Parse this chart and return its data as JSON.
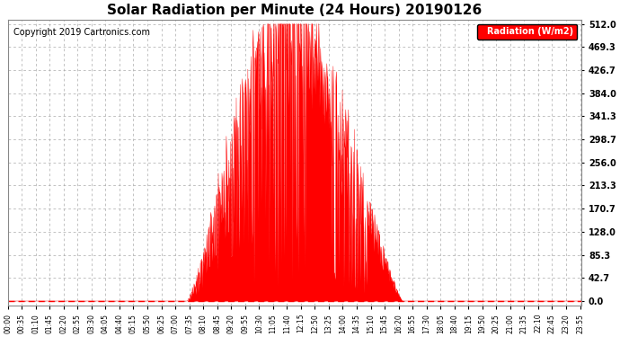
{
  "title": "Solar Radiation per Minute (24 Hours) 20190126",
  "copyright_text": "Copyright 2019 Cartronics.com",
  "legend_label": "Radiation (W/m2)",
  "y_ticks": [
    0.0,
    42.7,
    85.3,
    128.0,
    170.7,
    213.3,
    256.0,
    298.7,
    341.3,
    384.0,
    426.7,
    469.3,
    512.0
  ],
  "y_max": 512.0,
  "y_min": 0.0,
  "fill_color": "#FF0000",
  "line_color": "#FF0000",
  "background_color": "#FFFFFF",
  "grid_color": "#AAAAAA",
  "dashed_zero_color": "#FF0000",
  "title_fontsize": 11,
  "copyright_fontsize": 7,
  "legend_bg": "#FF0000",
  "legend_text_color": "#FFFFFF",
  "sunrise_min": 450,
  "sunset_min": 990,
  "solar_noon_min": 770,
  "peak_value": 512.0
}
